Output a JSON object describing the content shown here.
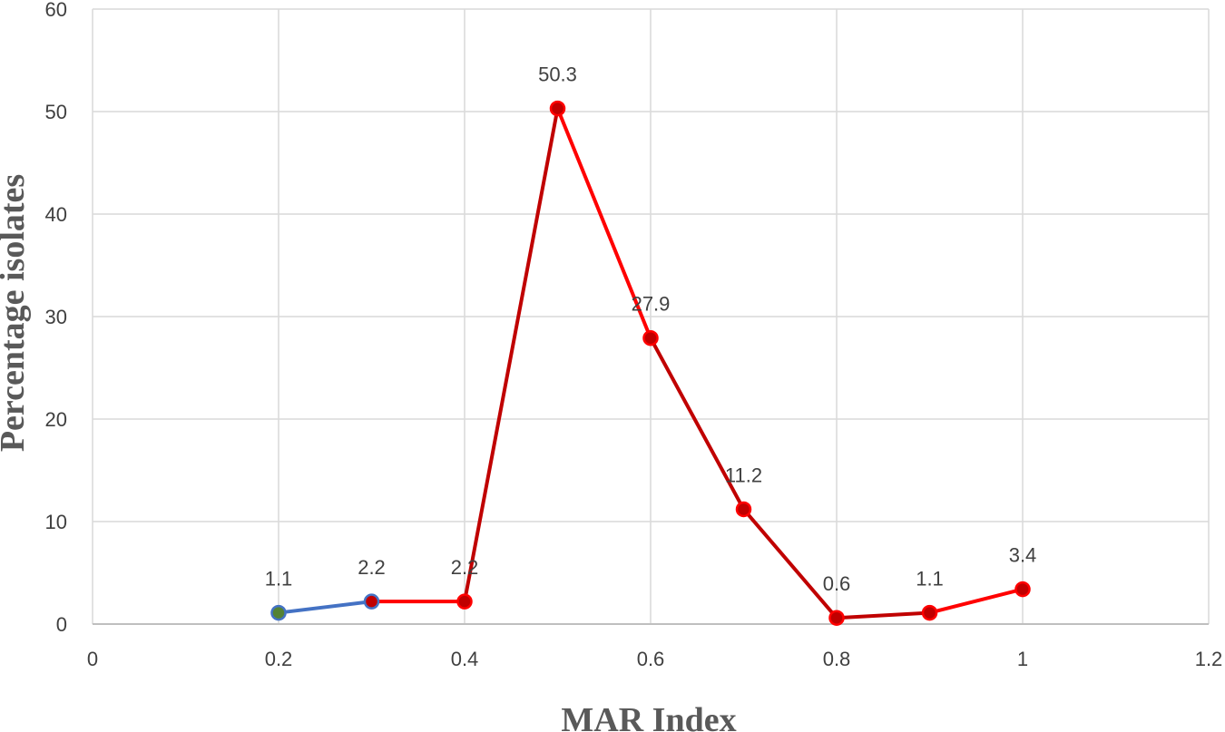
{
  "chart_data": {
    "type": "line",
    "title": "",
    "xlabel": "MAR Index",
    "ylabel": "Percentage isolates",
    "xlim": [
      0,
      1.2
    ],
    "ylim": [
      0,
      60
    ],
    "x_ticks": [
      "0",
      "0.2",
      "0.4",
      "0.6",
      "0.8",
      "1",
      "1.2"
    ],
    "y_ticks": [
      "0",
      "10",
      "20",
      "30",
      "40",
      "50",
      "60"
    ],
    "grid": true,
    "legend": "none",
    "points": [
      {
        "x": 0.2,
        "y": 1.1,
        "label": "1.1",
        "color": "#548235"
      },
      {
        "x": 0.3,
        "y": 2.2,
        "label": "2.2",
        "color": "#C00000"
      },
      {
        "x": 0.4,
        "y": 2.2,
        "label": "2.2",
        "color": "#C00000"
      },
      {
        "x": 0.5,
        "y": 50.3,
        "label": "50.3",
        "color": "#C00000"
      },
      {
        "x": 0.6,
        "y": 27.9,
        "label": "27.9",
        "color": "#C00000"
      },
      {
        "x": 0.7,
        "y": 11.2,
        "label": "11.2",
        "color": "#C00000"
      },
      {
        "x": 0.8,
        "y": 0.6,
        "label": "0.6",
        "color": "#C00000"
      },
      {
        "x": 0.9,
        "y": 1.1,
        "label": "1.1",
        "color": "#C00000"
      },
      {
        "x": 1.0,
        "y": 3.4,
        "label": "3.4",
        "color": "#C00000"
      }
    ],
    "segment_colors": [
      "#4472C4",
      "#FF0000",
      "#C00000",
      "#FF0000",
      "#C00000",
      "#C00000",
      "#C00000",
      "#FF0000"
    ],
    "marker_outline_colors": [
      "#4472C4",
      "#4472C4",
      "#FF0000",
      "#FF0000",
      "#FF0000",
      "#FF0000",
      "#FF0000",
      "#FF0000",
      "#FF0000"
    ]
  }
}
